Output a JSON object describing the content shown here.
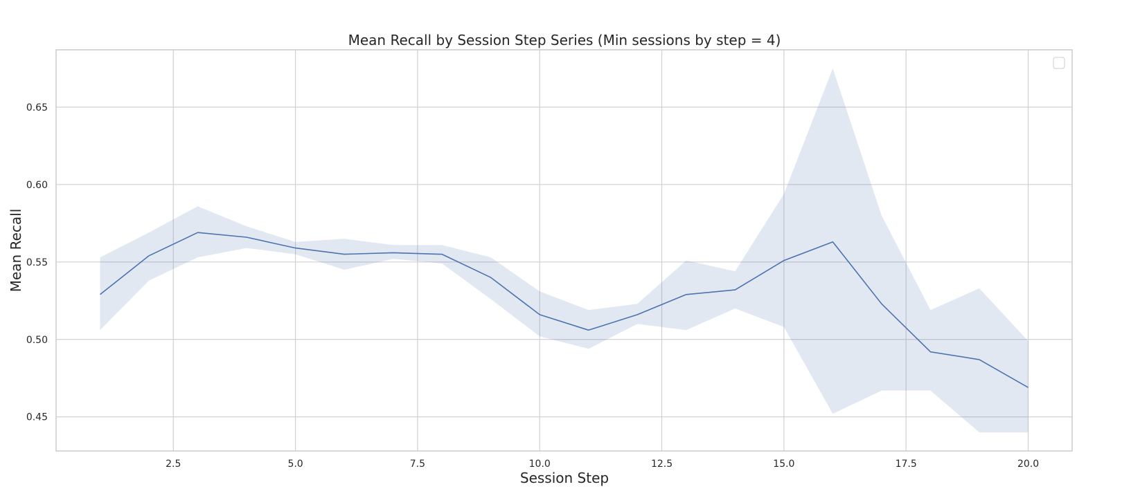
{
  "chart_data": {
    "type": "line",
    "title": "Mean Recall by Session Step Series (Min sessions by step = 4)",
    "xlabel": "Session Step",
    "ylabel": "Mean Recall",
    "xlim": [
      0.1,
      20.9
    ],
    "ylim": [
      0.428,
      0.687
    ],
    "x_ticks": [
      2.5,
      5.0,
      7.5,
      10.0,
      12.5,
      15.0,
      17.5,
      20.0
    ],
    "x_tick_labels": [
      "2.5",
      "5.0",
      "7.5",
      "10.0",
      "12.5",
      "15.0",
      "17.5",
      "20.0"
    ],
    "y_ticks": [
      0.45,
      0.5,
      0.55,
      0.6,
      0.65
    ],
    "y_tick_labels": [
      "0.45",
      "0.50",
      "0.55",
      "0.60",
      "0.65"
    ],
    "grid": true,
    "legend": "top-right (empty)",
    "colors": {
      "line": "#4c72b0",
      "band": "#4c72b0",
      "grid": "#d0d0d4",
      "frame": "#cccccc"
    },
    "series": [
      {
        "x": [
          1,
          2,
          3,
          4,
          5,
          6,
          7,
          8,
          9,
          10,
          11,
          12,
          13,
          14,
          15,
          16,
          17,
          18,
          19,
          20
        ],
        "y": [
          0.529,
          0.554,
          0.569,
          0.566,
          0.559,
          0.555,
          0.556,
          0.555,
          0.54,
          0.516,
          0.506,
          0.516,
          0.529,
          0.532,
          0.551,
          0.563,
          0.523,
          0.492,
          0.487,
          0.469
        ],
        "ci_lower": [
          0.506,
          0.538,
          0.553,
          0.559,
          0.555,
          0.545,
          0.552,
          0.549,
          0.526,
          0.502,
          0.494,
          0.51,
          0.506,
          0.52,
          0.508,
          0.452,
          0.467,
          0.467,
          0.44,
          0.44
        ],
        "ci_upper": [
          0.553,
          0.569,
          0.586,
          0.573,
          0.563,
          0.565,
          0.561,
          0.561,
          0.553,
          0.531,
          0.519,
          0.523,
          0.551,
          0.544,
          0.594,
          0.675,
          0.58,
          0.519,
          0.533,
          0.499
        ]
      }
    ]
  }
}
